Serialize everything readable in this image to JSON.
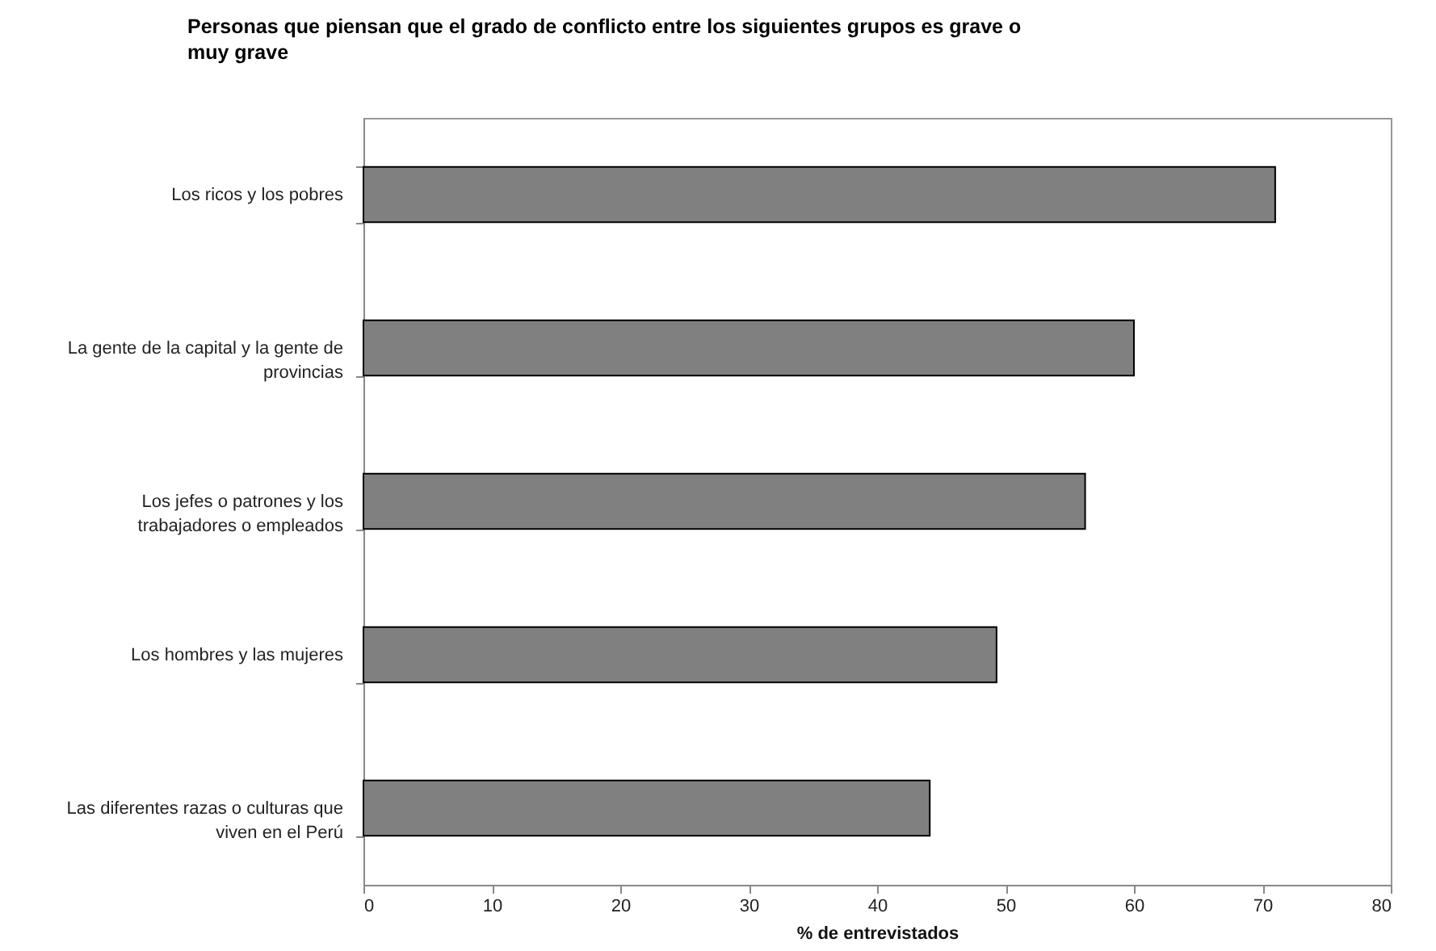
{
  "chart_data": {
    "type": "bar",
    "orientation": "horizontal",
    "title": "Personas que piensan que el grado de conflicto entre los siguientes grupos es grave o muy grave",
    "xlabel": "% de entrevistados",
    "categories": [
      "Los ricos y los pobres",
      "La gente de la capital y la gente de provincias",
      "Los jefes o patrones y los trabajadores o empleados",
      "Los hombres y las mujeres",
      "Las diferentes razas o culturas que viven en el Perú"
    ],
    "values": [
      71.0,
      60.0,
      56.2,
      49.3,
      44.1
    ],
    "color": "#808080",
    "xlim": [
      0,
      80
    ],
    "xticks": [
      0,
      10,
      20,
      30,
      40,
      50,
      60,
      70,
      80
    ],
    "grid": false
  }
}
